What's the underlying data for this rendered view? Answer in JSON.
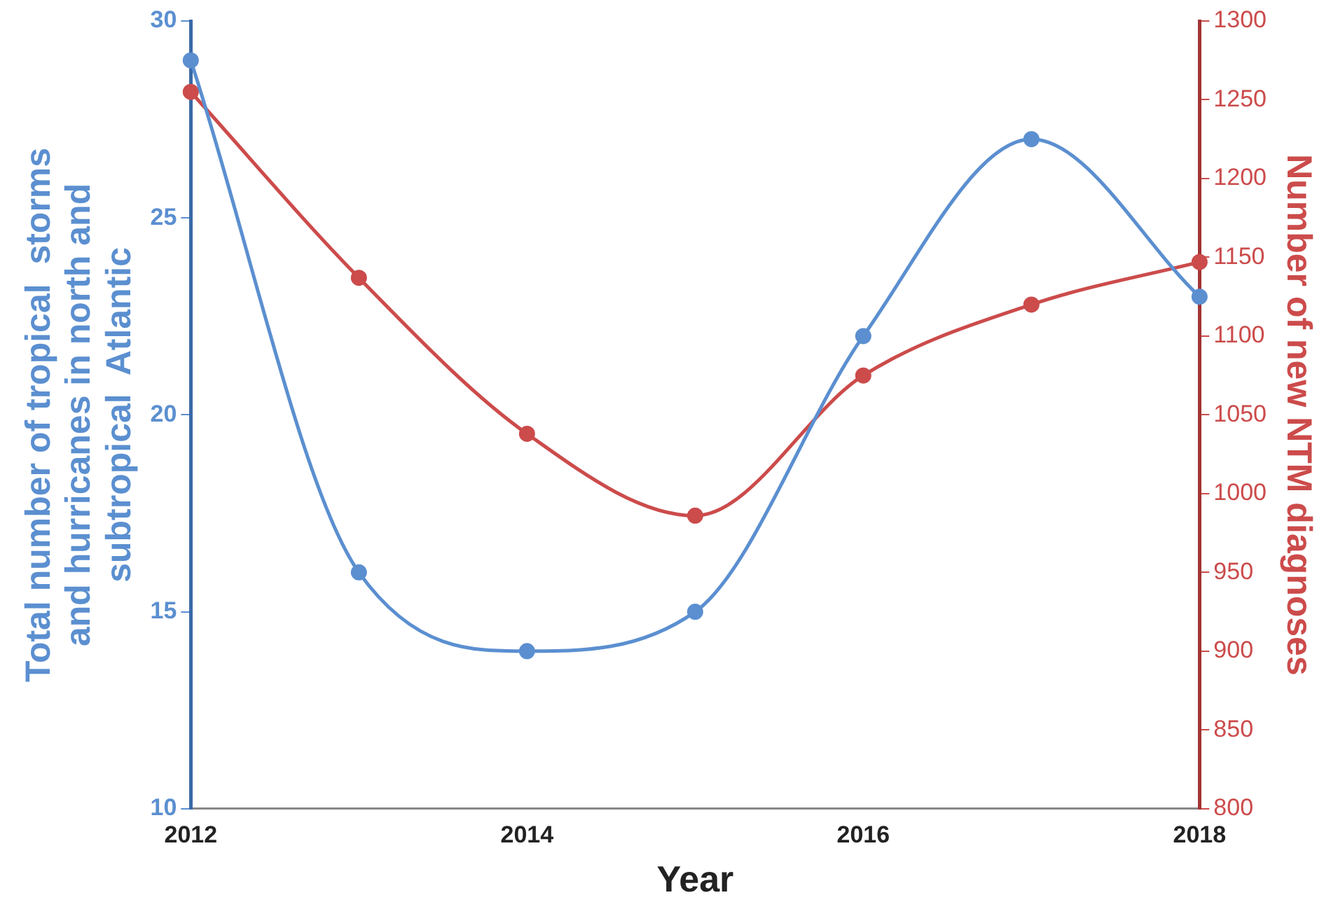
{
  "chart_data": {
    "type": "line",
    "xlabel": "Year",
    "ylabel": "Total number of tropical  storms\nand hurricanes in north and\nsubtropical  Atlantic",
    "y2label": "Number of new NTM diagnoses",
    "x": [
      2012,
      2013,
      2014,
      2015,
      2016,
      2017,
      2018
    ],
    "xlim": [
      2012,
      2018
    ],
    "xticks": [
      2012,
      2014,
      2016,
      2018
    ],
    "ylim": [
      10,
      30
    ],
    "yticks": [
      10,
      15,
      20,
      25,
      30
    ],
    "y2lim": [
      800,
      1300
    ],
    "y2ticks": [
      800,
      850,
      900,
      950,
      1000,
      1050,
      1100,
      1150,
      1200,
      1250,
      1300
    ],
    "series": [
      {
        "color": "#5b8fd0",
        "values": [
          29,
          16,
          14,
          15,
          22,
          27,
          23
        ]
      },
      {
        "color": "#cc4b4b",
        "axis": "y2",
        "values": [
          1255,
          1137,
          1038,
          986,
          1075,
          1120,
          1147
        ]
      }
    ],
    "grid": false,
    "legend": false,
    "marker": "circle",
    "line_style": "solid"
  }
}
